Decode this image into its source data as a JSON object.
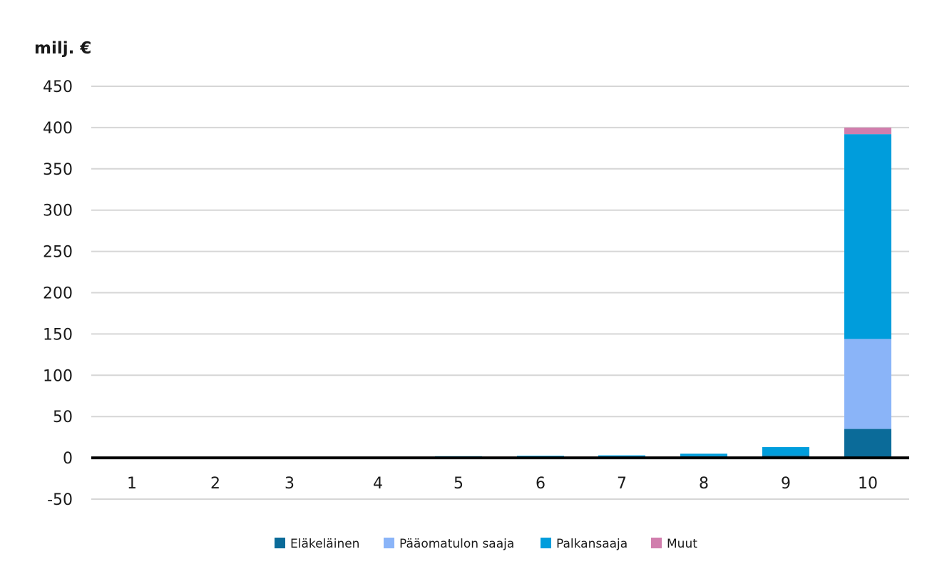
{
  "chart_data": {
    "type": "bar",
    "stacked": true,
    "ylabel": "milj. €",
    "ylim": [
      -50,
      450
    ],
    "yticks": [
      -50,
      0,
      50,
      100,
      150,
      200,
      250,
      300,
      350,
      400,
      450
    ],
    "categories": [
      "1",
      "2",
      "3",
      "4",
      "5",
      "6",
      "7",
      "8",
      "9",
      "10"
    ],
    "series": [
      {
        "name": "Eläkeläinen",
        "color": "#0b6b99",
        "values": [
          0.5,
          0.5,
          0.5,
          0.5,
          1,
          1,
          1,
          2,
          3,
          35
        ]
      },
      {
        "name": "Pääomatulon saaja",
        "color": "#8ab4f8",
        "values": [
          0,
          0,
          0,
          0,
          0,
          0,
          0,
          0,
          0,
          109
        ]
      },
      {
        "name": "Palkansaaja",
        "color": "#009ddc",
        "values": [
          0.3,
          0.3,
          0.3,
          0.3,
          1,
          1.5,
          2,
          3,
          10,
          248
        ]
      },
      {
        "name": "Muut",
        "color": "#d17ead",
        "values": [
          0,
          0,
          0,
          0,
          0,
          0,
          0,
          0,
          0,
          8
        ]
      }
    ],
    "grid": true,
    "legend": "bottom"
  }
}
